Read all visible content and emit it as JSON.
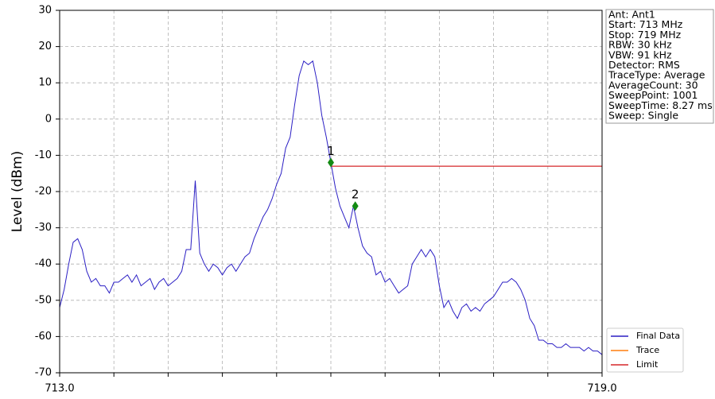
{
  "chart_data": {
    "type": "line",
    "ylabel": "Level (dBm)",
    "xlim": [
      713.0,
      719.0
    ],
    "ylim": [
      -70,
      30
    ],
    "xticks": [
      {
        "value": 713.0,
        "label": "713.0"
      },
      {
        "value": 713.6,
        "label": null
      },
      {
        "value": 714.2,
        "label": null
      },
      {
        "value": 714.8,
        "label": null
      },
      {
        "value": 715.4,
        "label": null
      },
      {
        "value": 716.0,
        "label": null
      },
      {
        "value": 716.6,
        "label": null
      },
      {
        "value": 717.2,
        "label": null
      },
      {
        "value": 717.8,
        "label": null
      },
      {
        "value": 718.4,
        "label": null
      },
      {
        "value": 719.0,
        "label": "719.0"
      }
    ],
    "yticks": [
      30,
      20,
      10,
      0,
      -10,
      -20,
      -30,
      -40,
      -50,
      -60,
      -70
    ],
    "grid": true,
    "legend": "lower right",
    "series": [
      {
        "name": "Final Data",
        "color": "#2b1fc4",
        "x": [
          713.0,
          713.05,
          713.1,
          713.15,
          713.2,
          713.25,
          713.3,
          713.35,
          713.4,
          713.45,
          713.5,
          713.55,
          713.6,
          713.65,
          713.7,
          713.75,
          713.8,
          713.85,
          713.9,
          713.95,
          714.0,
          714.05,
          714.1,
          714.15,
          714.2,
          714.25,
          714.3,
          714.35,
          714.4,
          714.45,
          714.5,
          714.55,
          714.6,
          714.65,
          714.7,
          714.75,
          714.8,
          714.85,
          714.9,
          714.95,
          715.0,
          715.05,
          715.1,
          715.15,
          715.2,
          715.25,
          715.3,
          715.35,
          715.4,
          715.45,
          715.5,
          715.55,
          715.6,
          715.65,
          715.7,
          715.75,
          715.8,
          715.85,
          715.9,
          715.95,
          716.0,
          716.05,
          716.1,
          716.15,
          716.2,
          716.25,
          716.3,
          716.35,
          716.4,
          716.45,
          716.5,
          716.55,
          716.6,
          716.65,
          716.7,
          716.75,
          716.8,
          716.85,
          716.9,
          716.95,
          717.0,
          717.05,
          717.1,
          717.15,
          717.2,
          717.25,
          717.3,
          717.35,
          717.4,
          717.45,
          717.5,
          717.55,
          717.6,
          717.65,
          717.7,
          717.75,
          717.8,
          717.85,
          717.9,
          717.95,
          718.0,
          718.05,
          718.1,
          718.15,
          718.2,
          718.25,
          718.3,
          718.35,
          718.4,
          718.45,
          718.5,
          718.55,
          718.6,
          718.65,
          718.7,
          718.75,
          718.8,
          718.85,
          718.9,
          718.95,
          719.0
        ],
        "values": [
          -52,
          -47,
          -40,
          -34,
          -33,
          -36,
          -42,
          -45,
          -44,
          -46,
          -46,
          -48,
          -45,
          -45,
          -44,
          -43,
          -45,
          -43,
          -46,
          -45,
          -44,
          -47,
          -45,
          -44,
          -46,
          -45,
          -44,
          -42,
          -36,
          -36,
          -17,
          -37,
          -40,
          -42,
          -40,
          -41,
          -43,
          -41,
          -40,
          -42,
          -40,
          -38,
          -37,
          -33,
          -30,
          -27,
          -25,
          -22,
          -18,
          -15,
          -8,
          -5,
          4,
          12,
          16,
          15,
          16,
          10,
          1,
          -5,
          -12,
          -19,
          -24,
          -27,
          -30,
          -24,
          -30,
          -35,
          -37,
          -38,
          -43,
          -42,
          -45,
          -44,
          -46,
          -48,
          -47,
          -46,
          -40,
          -38,
          -36,
          -38,
          -36,
          -38,
          -46,
          -52,
          -50,
          -53,
          -55,
          -52,
          -51,
          -53,
          -52,
          -53,
          -51,
          -50,
          -49,
          -47,
          -45,
          -45,
          -44,
          -45,
          -47,
          -50,
          -55,
          -57,
          -61,
          -61,
          -62,
          -62,
          -63,
          -63,
          -62,
          -63,
          -63,
          -63,
          -64,
          -63,
          -64,
          -64,
          -65
        ]
      },
      {
        "name": "Trace",
        "color": "#ff7f0e",
        "x": [],
        "values": []
      },
      {
        "name": "Limit",
        "color": "#d62728",
        "x": [
          716.0,
          719.0
        ],
        "values": [
          -13,
          -13
        ]
      }
    ],
    "markers": [
      {
        "label": "1",
        "x": 716.0,
        "y": -12,
        "color": "#138a13"
      },
      {
        "label": "2",
        "x": 716.27,
        "y": -24,
        "color": "#138a13"
      }
    ],
    "info": [
      "Ant: Ant1",
      "Start: 713 MHz",
      "Stop: 719 MHz",
      "RBW: 30 kHz",
      "VBW: 91 kHz",
      "Detector: RMS",
      "TraceType: Average",
      "AverageCount: 30",
      "SweepPoint: 1001",
      "SweepTime: 8.27 ms",
      "Sweep: Single"
    ]
  }
}
